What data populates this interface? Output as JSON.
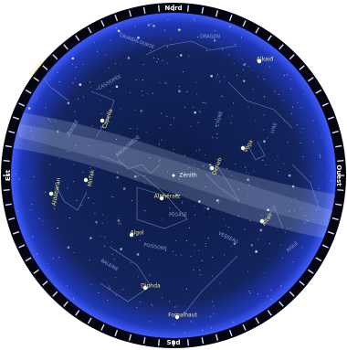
{
  "compass": {
    "north": "Nord",
    "south": "Sud",
    "east": "Est",
    "west": "Ouest"
  },
  "zenith": "Zénith",
  "stars": [
    {
      "label": "Capella"
    },
    {
      "label": "Aldébaran"
    },
    {
      "label": "Véga"
    },
    {
      "label": "Altaïr"
    },
    {
      "label": "Deneb"
    },
    {
      "label": "Fomalhaut"
    },
    {
      "label": "Diphda"
    },
    {
      "label": "Castor"
    },
    {
      "label": "Alphératz"
    },
    {
      "label": "Mirfak"
    },
    {
      "label": "Algol"
    },
    {
      "label": "Alkaid"
    }
  ],
  "constellations": [
    {
      "label": "PÉGASE"
    },
    {
      "label": "ANDROMÈDE"
    },
    {
      "label": "CASSIOPÉE"
    },
    {
      "label": "CYGNE"
    },
    {
      "label": "PERSÉE"
    },
    {
      "label": "LYRE"
    },
    {
      "label": "DRAGON"
    },
    {
      "label": "BALEINE"
    },
    {
      "label": "VERSEAU"
    },
    {
      "label": "POISSONS"
    },
    {
      "label": "AIGLE"
    },
    {
      "label": "GRANDE OURSE"
    }
  ]
}
